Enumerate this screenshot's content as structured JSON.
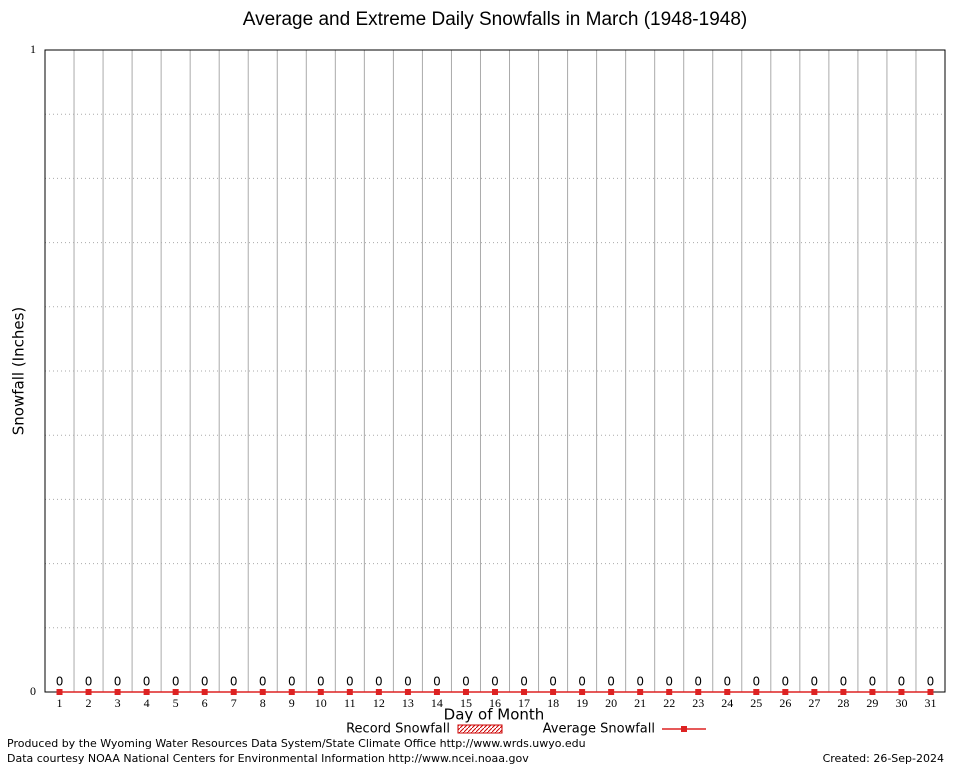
{
  "chart_data": {
    "type": "bar",
    "title": "Average and Extreme Daily Snowfalls in March (1948-1948)",
    "x_label": "Day of Month",
    "y_label": "Snowfall (Inches)",
    "categories": [
      1,
      2,
      3,
      4,
      5,
      6,
      7,
      8,
      9,
      10,
      11,
      12,
      13,
      14,
      15,
      16,
      17,
      18,
      19,
      20,
      21,
      22,
      23,
      24,
      25,
      26,
      27,
      28,
      29,
      30,
      31
    ],
    "series": [
      {
        "name": "Record Snowfall",
        "color": "#cc0000",
        "style": "bar",
        "values": [
          0,
          0,
          0,
          0,
          0,
          0,
          0,
          0,
          0,
          0,
          0,
          0,
          0,
          0,
          0,
          0,
          0,
          0,
          0,
          0,
          0,
          0,
          0,
          0,
          0,
          0,
          0,
          0,
          0,
          0,
          0
        ]
      },
      {
        "name": "Average Snowfall",
        "color": "#dd2222",
        "style": "line",
        "values": [
          0,
          0,
          0,
          0,
          0,
          0,
          0,
          0,
          0,
          0,
          0,
          0,
          0,
          0,
          0,
          0,
          0,
          0,
          0,
          0,
          0,
          0,
          0,
          0,
          0,
          0,
          0,
          0,
          0,
          0,
          0
        ]
      }
    ],
    "ylim": [
      0,
      1
    ],
    "yticks": [
      0,
      1
    ],
    "minor_yticks": [
      0.1,
      0.2,
      0.3,
      0.4,
      0.5,
      0.6,
      0.7,
      0.8,
      0.9
    ],
    "grid": true,
    "footer": {
      "produced": "Produced by the Wyoming Water Resources Data System/State Climate Office http://www.wrds.uwyo.edu",
      "courtesy": "Data courtesy NOAA National Centers for Environmental Information http://www.ncei.noaa.gov",
      "created": "Created:  26-Sep-2024"
    }
  }
}
